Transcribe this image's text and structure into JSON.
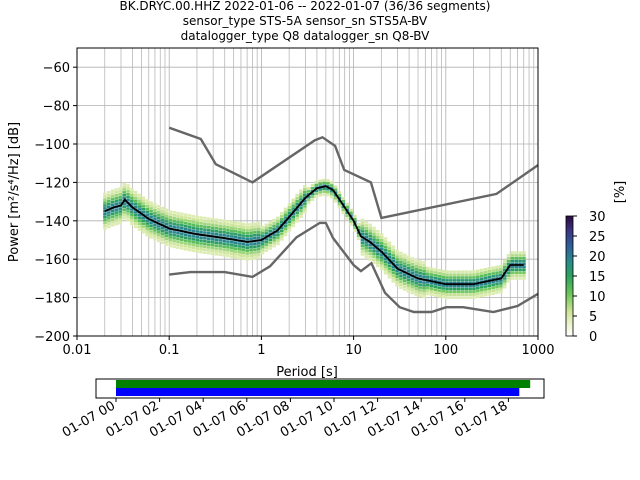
{
  "title_lines": [
    "BK.DRYC.00.HHZ   2022-01-06 -- 2022-01-07  (36/36 segments)",
    "sensor_type STS-5A sensor_sn STS5A-BV",
    "datalogger_type Q8 datalogger_sn Q8-BV"
  ],
  "chart_data": [
    {
      "type": "heatmap",
      "name": "probabilistic-power-spectral-density",
      "xlabel": "Period [s]",
      "ylabel": "Power [m²/s⁴/Hz] [dB]",
      "xscale": "log",
      "xlim": [
        0.01,
        1000
      ],
      "ylim": [
        -200,
        -50
      ],
      "xticks": [
        0.01,
        0.1,
        1,
        10,
        100,
        1000
      ],
      "xtick_labels": [
        "0.01",
        "0.1",
        "1",
        "10",
        "100",
        "1000"
      ],
      "yticks": [
        -200,
        -180,
        -160,
        -140,
        -120,
        -100,
        -80,
        -60
      ],
      "grid": true,
      "colorbar": {
        "label": "[%]",
        "min": 0,
        "max": 30,
        "ticks": [
          0,
          5,
          10,
          15,
          20,
          25,
          30
        ]
      },
      "mode_curve": [
        [
          0.02,
          -135
        ],
        [
          0.025,
          -133
        ],
        [
          0.03,
          -132
        ],
        [
          0.033,
          -129
        ],
        [
          0.04,
          -133
        ],
        [
          0.06,
          -139
        ],
        [
          0.1,
          -144
        ],
        [
          0.2,
          -147
        ],
        [
          0.4,
          -149
        ],
        [
          0.7,
          -151
        ],
        [
          1.0,
          -150
        ],
        [
          1.5,
          -145
        ],
        [
          2.0,
          -138
        ],
        [
          3.0,
          -128
        ],
        [
          4.0,
          -123
        ],
        [
          5.0,
          -122
        ],
        [
          6.0,
          -124
        ],
        [
          8.0,
          -133
        ],
        [
          10.0,
          -140
        ],
        [
          12.0,
          -148
        ],
        [
          15.0,
          -151
        ],
        [
          20.0,
          -156
        ],
        [
          30.0,
          -165
        ],
        [
          50.0,
          -170
        ],
        [
          100.0,
          -173
        ],
        [
          200.0,
          -173
        ],
        [
          250.0,
          -172
        ],
        [
          400.0,
          -170
        ],
        [
          500.0,
          -163
        ],
        [
          700.0,
          -163
        ]
      ],
      "noise_model_high": [
        [
          0.1,
          -91.5
        ],
        [
          0.22,
          -97.4
        ],
        [
          0.32,
          -110.5
        ],
        [
          0.8,
          -120
        ],
        [
          3.8,
          -98
        ],
        [
          4.6,
          -96.5
        ],
        [
          6.3,
          -101
        ],
        [
          7.9,
          -113.5
        ],
        [
          15.4,
          -120
        ],
        [
          20,
          -138.5
        ],
        [
          354.8,
          -126
        ],
        [
          1000,
          -111
        ]
      ],
      "noise_model_low": [
        [
          0.1,
          -168
        ],
        [
          0.17,
          -166.7
        ],
        [
          0.4,
          -166.7
        ],
        [
          0.8,
          -169.2
        ],
        [
          1.24,
          -163.7
        ],
        [
          2.4,
          -148.6
        ],
        [
          4.3,
          -141.1
        ],
        [
          5.0,
          -141.1
        ],
        [
          6.0,
          -149
        ],
        [
          10.0,
          -163
        ],
        [
          12.0,
          -166.2
        ],
        [
          15.6,
          -162.1
        ],
        [
          21.9,
          -177.5
        ],
        [
          31.6,
          -185
        ],
        [
          45,
          -187.5
        ],
        [
          70,
          -187.5
        ],
        [
          101,
          -185
        ],
        [
          154,
          -185
        ],
        [
          328,
          -187.5
        ],
        [
          600,
          -184.4
        ],
        [
          1000,
          -178
        ]
      ]
    },
    {
      "type": "bar",
      "name": "data-availability",
      "x": [
        "01-07 00",
        "01-07 02",
        "01-07 04",
        "01-07 06",
        "01-07 08",
        "01-07 10",
        "01-07 12",
        "01-07 14",
        "01-07 16",
        "01-07 18"
      ],
      "series": [
        {
          "color": "#008000",
          "start_hour": 0.0,
          "end_hour": 19.0
        },
        {
          "color": "#0000ff",
          "start_hour": 0.0,
          "end_hour": 18.5
        }
      ]
    }
  ]
}
